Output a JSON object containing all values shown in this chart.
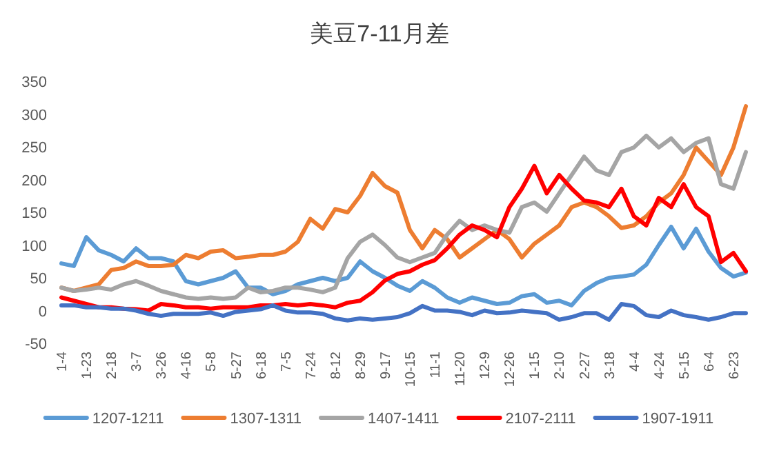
{
  "chart_data": {
    "type": "line",
    "title": "美豆7-11月差",
    "categories": [
      "1-4",
      null,
      "1-23",
      null,
      "2-18",
      null,
      "3-7",
      null,
      "3-26",
      null,
      "4-16",
      null,
      "5-8",
      null,
      "5-27",
      null,
      "6-18",
      null,
      "7-5",
      null,
      "7-24",
      null,
      "8-12",
      null,
      "8-29",
      null,
      "9-17",
      null,
      "10-15",
      null,
      "11-1",
      null,
      "11-20",
      null,
      "12-9",
      null,
      "12-26",
      null,
      "1-15",
      null,
      "2-10",
      null,
      "2-27",
      null,
      "3-18",
      null,
      "4-4",
      null,
      "4-24",
      null,
      "5-15",
      null,
      "6-4",
      null,
      "6-23",
      null
    ],
    "series": [
      {
        "name": "1207-1211",
        "color": "#5b9bd5",
        "values": [
          72,
          68,
          112,
          92,
          85,
          75,
          95,
          80,
          80,
          75,
          45,
          40,
          45,
          50,
          60,
          35,
          35,
          25,
          30,
          40,
          45,
          50,
          45,
          50,
          75,
          60,
          50,
          38,
          30,
          45,
          35,
          20,
          12,
          20,
          15,
          10,
          12,
          22,
          25,
          12,
          15,
          8,
          30,
          42,
          50,
          52,
          55,
          70,
          100,
          128,
          95,
          125,
          90,
          65,
          52,
          58
        ]
      },
      {
        "name": "1307-1311",
        "color": "#ed7d31",
        "values": [
          35,
          30,
          35,
          40,
          62,
          65,
          75,
          68,
          68,
          70,
          85,
          80,
          90,
          92,
          80,
          82,
          85,
          85,
          90,
          105,
          140,
          125,
          155,
          150,
          175,
          210,
          190,
          180,
          123,
          95,
          123,
          109,
          81,
          95,
          109,
          123,
          109,
          81,
          102,
          116,
          130,
          158,
          165,
          158,
          144,
          126,
          130,
          144,
          165,
          179,
          207,
          249,
          228,
          207,
          249,
          312
        ]
      },
      {
        "name": "1407-1411",
        "color": "#a5a5a5",
        "values": [
          35,
          30,
          32,
          35,
          32,
          40,
          45,
          38,
          30,
          25,
          20,
          18,
          20,
          18,
          20,
          35,
          28,
          30,
          35,
          35,
          32,
          28,
          35,
          80,
          105,
          116,
          100,
          81,
          74,
          81,
          88,
          116,
          137,
          123,
          130,
          123,
          119,
          158,
          165,
          151,
          179,
          207,
          235,
          214,
          207,
          242,
          249,
          267,
          249,
          263,
          242,
          256,
          263,
          193,
          186,
          242
        ]
      },
      {
        "name": "2107-2111",
        "color": "#ff0000",
        "values": [
          20,
          15,
          10,
          5,
          5,
          3,
          2,
          0,
          10,
          8,
          5,
          5,
          3,
          5,
          5,
          5,
          8,
          8,
          10,
          8,
          10,
          8,
          5,
          12,
          15,
          28,
          46,
          56,
          60,
          70,
          77,
          95,
          116,
          130,
          123,
          112,
          158,
          186,
          221,
          179,
          207,
          186,
          168,
          165,
          158,
          186,
          144,
          130,
          172,
          158,
          193,
          158,
          144,
          74,
          88,
          60
        ]
      },
      {
        "name": "1907-1911",
        "color": "#4472c4",
        "values": [
          8,
          8,
          5,
          5,
          3,
          3,
          0,
          -5,
          -8,
          -5,
          -5,
          -5,
          -3,
          -8,
          -2,
          0,
          2,
          8,
          0,
          -3,
          -3,
          -5,
          -12,
          -15,
          -12,
          -14,
          -12,
          -10,
          -4,
          7,
          0,
          0,
          -2,
          -7,
          0,
          -4,
          -3,
          0,
          -2,
          -4,
          -14,
          -10,
          -4,
          -4,
          -14,
          10,
          7,
          -7,
          -10,
          0,
          -7,
          -10,
          -14,
          -10,
          -4,
          -4
        ]
      }
    ],
    "ylim": [
      -50,
      350
    ],
    "yticks": [
      -50,
      0,
      50,
      100,
      150,
      200,
      250,
      300,
      350
    ],
    "grid": false,
    "legend": "bottom",
    "line_style": "solid"
  }
}
